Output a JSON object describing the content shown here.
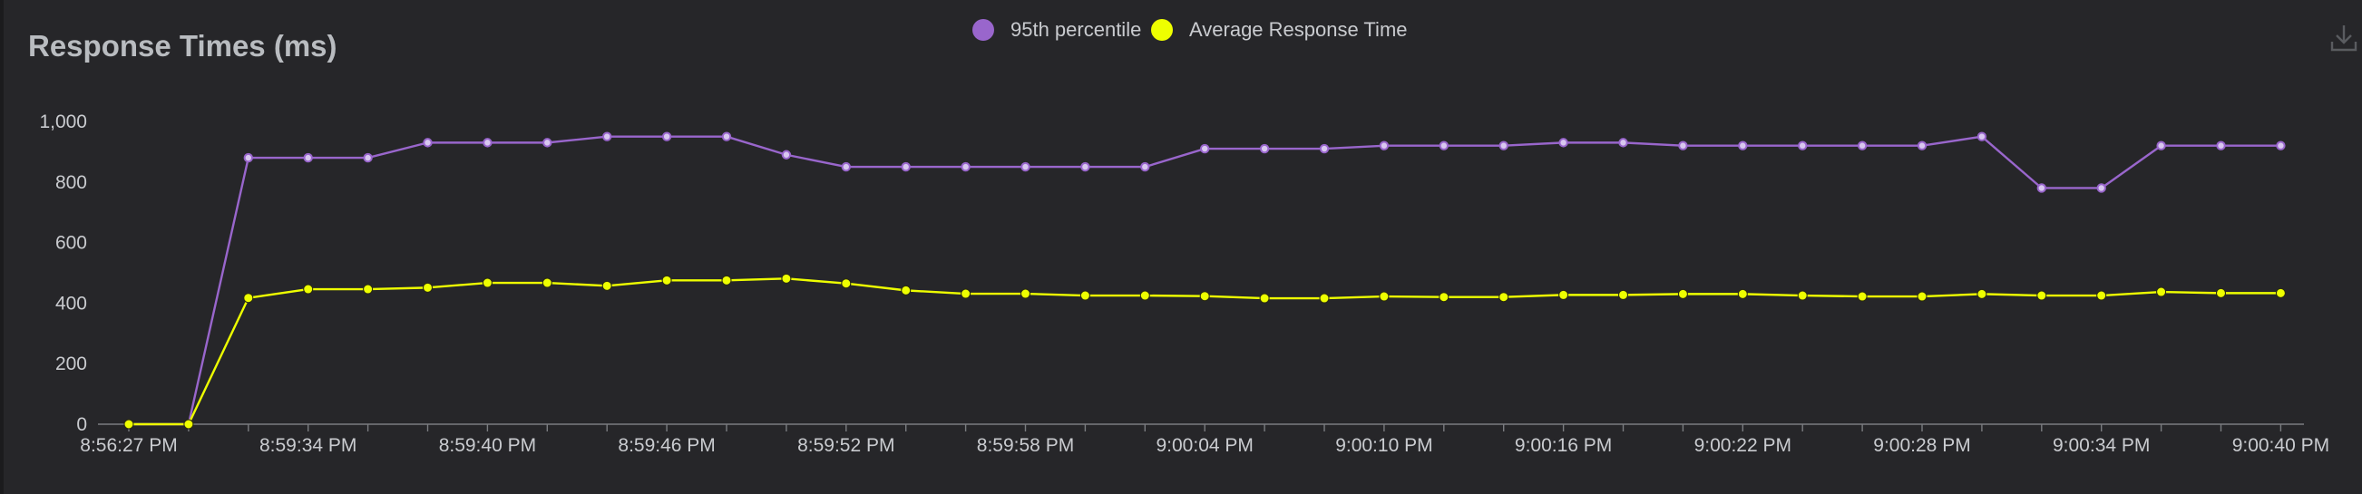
{
  "chart_data": {
    "type": "line",
    "title": "Response Times (ms)",
    "x": [
      "8:56:27 PM",
      "",
      "8:59:32 PM",
      "8:59:34 PM",
      "8:59:36 PM",
      "8:59:38 PM",
      "8:59:40 PM",
      "8:59:42 PM",
      "8:59:44 PM",
      "8:59:46 PM",
      "8:59:48 PM",
      "8:59:50 PM",
      "8:59:52 PM",
      "8:59:54 PM",
      "8:59:56 PM",
      "8:59:58 PM",
      "9:00:00 PM",
      "9:00:02 PM",
      "9:00:04 PM",
      "9:00:06 PM",
      "9:00:08 PM",
      "9:00:10 PM",
      "9:00:12 PM",
      "9:00:14 PM",
      "9:00:16 PM",
      "9:00:18 PM",
      "9:00:20 PM",
      "9:00:22 PM",
      "9:00:24 PM",
      "9:00:26 PM",
      "9:00:28 PM",
      "9:00:30 PM",
      "9:00:32 PM",
      "9:00:34 PM",
      "9:00:36 PM",
      "9:00:38 PM",
      "9:00:40 PM"
    ],
    "x_tick_labels": [
      "8:56:27 PM",
      "8:59:34 PM",
      "8:59:40 PM",
      "8:59:46 PM",
      "8:59:52 PM",
      "8:59:58 PM",
      "9:00:04 PM",
      "9:00:10 PM",
      "9:00:16 PM",
      "9:00:22 PM",
      "9:00:28 PM",
      "9:00:34 PM",
      "9:00:40 PM"
    ],
    "x_tick_indices": [
      0,
      3,
      6,
      9,
      12,
      15,
      18,
      21,
      24,
      27,
      30,
      33,
      36
    ],
    "series": [
      {
        "name": "95th percentile",
        "color": "#9966cc",
        "values": [
          0,
          0,
          880,
          880,
          880,
          930,
          930,
          930,
          950,
          950,
          950,
          890,
          850,
          850,
          850,
          850,
          850,
          850,
          910,
          910,
          910,
          920,
          920,
          920,
          930,
          930,
          920,
          920,
          920,
          920,
          920,
          950,
          780,
          780,
          920,
          920,
          920
        ]
      },
      {
        "name": "Average Response Time",
        "color": "#eeff00",
        "values": [
          0,
          0,
          417,
          446,
          446,
          451,
          467,
          467,
          457,
          475,
          475,
          481,
          465,
          442,
          431,
          431,
          425,
          425,
          423,
          416,
          416,
          422,
          420,
          420,
          427,
          427,
          430,
          430,
          425,
          422,
          422,
          430,
          425,
          425,
          437,
          433,
          433
        ]
      }
    ],
    "yticks": [
      0,
      200,
      400,
      600,
      800,
      1000
    ],
    "ytick_labels": [
      "0",
      "200",
      "400",
      "600",
      "800",
      "1,000"
    ],
    "ylim": [
      0,
      1000
    ],
    "grid": false,
    "legend_position": "top-center"
  }
}
